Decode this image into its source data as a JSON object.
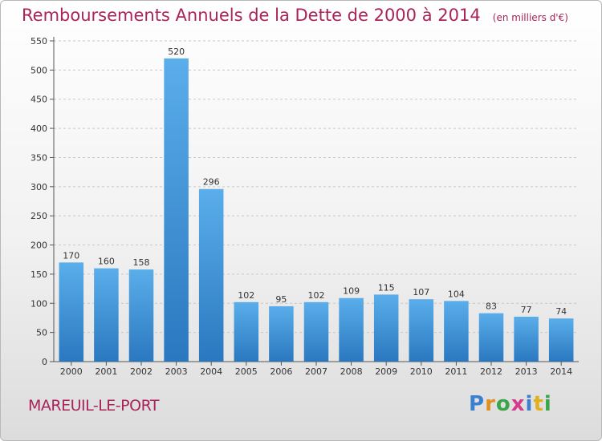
{
  "header": {
    "title": "Remboursements Annuels de la Dette de 2000 à 2014",
    "subtitle": "(en milliers d'€)"
  },
  "footer": {
    "commune": "MAREUIL-LE-PORT",
    "logo": {
      "letters": [
        {
          "char": "P",
          "color": "#3a7fd0"
        },
        {
          "char": "r",
          "color": "#e09020"
        },
        {
          "char": "o",
          "color": "#3aa64a"
        },
        {
          "char": "x",
          "color": "#d63a8c"
        },
        {
          "char": "i",
          "color": "#3a7fd0"
        },
        {
          "char": "t",
          "color": "#e0b020"
        },
        {
          "char": "i",
          "color": "#3aa64a"
        }
      ]
    }
  },
  "chart_data": {
    "type": "bar",
    "categories": [
      "2000",
      "2001",
      "2002",
      "2003",
      "2004",
      "2005",
      "2006",
      "2007",
      "2008",
      "2009",
      "2010",
      "2011",
      "2012",
      "2013",
      "2014"
    ],
    "values": [
      170,
      160,
      158,
      520,
      296,
      102,
      95,
      102,
      109,
      115,
      107,
      104,
      83,
      77,
      74
    ],
    "ylim": [
      0,
      550
    ],
    "yticks": [
      0,
      50,
      100,
      150,
      200,
      250,
      300,
      350,
      400,
      450,
      500,
      550
    ],
    "grid": true,
    "bar_color_top": "#5aaeea",
    "bar_color_bottom": "#2a78c0"
  }
}
